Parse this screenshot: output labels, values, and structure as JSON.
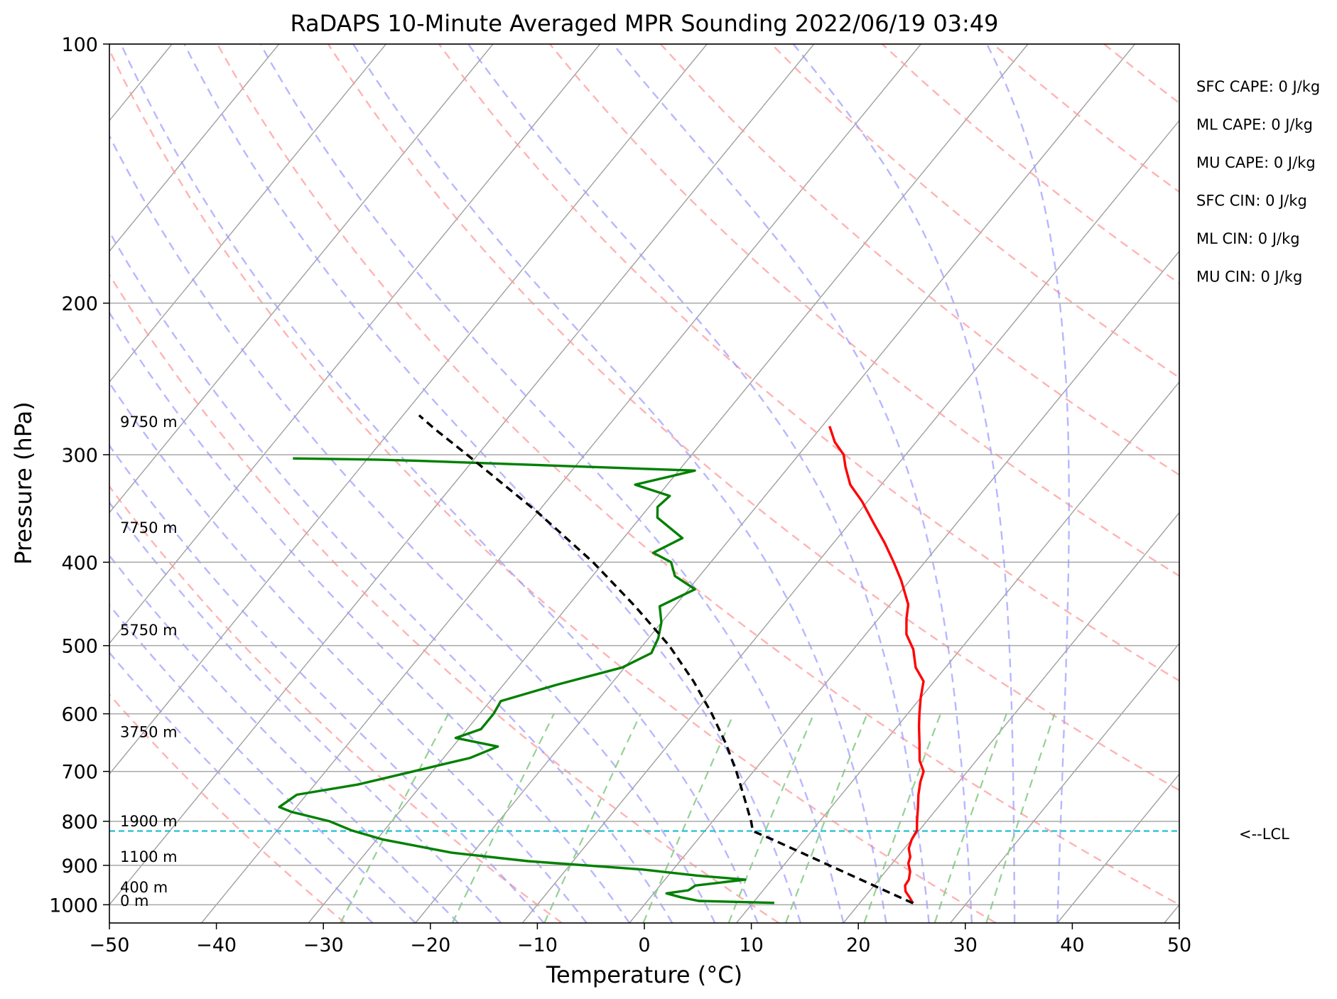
{
  "chart_data": {
    "type": "line",
    "title": "RaDAPS 10-Minute Averaged MPR Sounding 2022/06/19 03:49",
    "xlabel": "Temperature (°C)",
    "ylabel": "Pressure (hPa)",
    "xlim": [
      -50,
      50
    ],
    "ylim": [
      1050,
      100
    ],
    "y_scale": "log",
    "grid": true,
    "skew": true,
    "x_ticks": [
      -50,
      -40,
      -30,
      -20,
      -10,
      0,
      10,
      20,
      30,
      40,
      50
    ],
    "x_tick_labels": [
      "−50",
      "−40",
      "−30",
      "−20",
      "−10",
      "0",
      "10",
      "20",
      "30",
      "40",
      "50"
    ],
    "y_ticks": [
      1000,
      900,
      800,
      700,
      600,
      500,
      400,
      300,
      200,
      100
    ],
    "y_tick_labels": [
      "1000",
      "900",
      "800",
      "700",
      "600",
      "500",
      "400",
      "300",
      "200",
      "100"
    ],
    "series": [
      {
        "role": "temperature",
        "color": "#ff0000",
        "points": [
          [
            996,
            25.0
          ],
          [
            980,
            24.2
          ],
          [
            965,
            23.4
          ],
          [
            950,
            22.9
          ],
          [
            935,
            22.8
          ],
          [
            915,
            22.3
          ],
          [
            895,
            21.5
          ],
          [
            880,
            21.2
          ],
          [
            860,
            20.4
          ],
          [
            840,
            20.0
          ],
          [
            820,
            19.8
          ],
          [
            800,
            19.1
          ],
          [
            770,
            18.1
          ],
          [
            745,
            17.2
          ],
          [
            720,
            16.4
          ],
          [
            700,
            15.9
          ],
          [
            680,
            14.7
          ],
          [
            650,
            13.4
          ],
          [
            620,
            12.0
          ],
          [
            600,
            11.1
          ],
          [
            575,
            10.0
          ],
          [
            550,
            9.0
          ],
          [
            530,
            7.2
          ],
          [
            505,
            5.6
          ],
          [
            485,
            3.8
          ],
          [
            465,
            2.6
          ],
          [
            448,
            1.7
          ],
          [
            420,
            -0.8
          ],
          [
            400,
            -2.9
          ],
          [
            380,
            -5.2
          ],
          [
            360,
            -7.8
          ],
          [
            340,
            -10.5
          ],
          [
            325,
            -12.9
          ],
          [
            310,
            -14.7
          ],
          [
            300,
            -15.8
          ],
          [
            290,
            -17.6
          ],
          [
            278,
            -19.3
          ]
        ]
      },
      {
        "role": "dewpoint",
        "color": "#008000",
        "points": [
          [
            995,
            12.0
          ],
          [
            990,
            4.8
          ],
          [
            980,
            2.8
          ],
          [
            970,
            1.2
          ],
          [
            962,
            3.0
          ],
          [
            950,
            3.3
          ],
          [
            935,
            7.5
          ],
          [
            925,
            2.7
          ],
          [
            910,
            -2.9
          ],
          [
            890,
            -14.2
          ],
          [
            870,
            -22.0
          ],
          [
            840,
            -29.4
          ],
          [
            820,
            -33.0
          ],
          [
            800,
            -35.8
          ],
          [
            780,
            -40.1
          ],
          [
            770,
            -41.6
          ],
          [
            745,
            -40.9
          ],
          [
            725,
            -36.0
          ],
          [
            700,
            -31.8
          ],
          [
            675,
            -27.5
          ],
          [
            655,
            -25.8
          ],
          [
            640,
            -30.4
          ],
          [
            625,
            -28.7
          ],
          [
            600,
            -28.7
          ],
          [
            580,
            -29.0
          ],
          [
            555,
            -25.0
          ],
          [
            530,
            -20.2
          ],
          [
            510,
            -18.6
          ],
          [
            490,
            -19.1
          ],
          [
            470,
            -20.0
          ],
          [
            450,
            -21.4
          ],
          [
            430,
            -19.4
          ],
          [
            415,
            -22.3
          ],
          [
            400,
            -23.7
          ],
          [
            390,
            -26.1
          ],
          [
            375,
            -24.5
          ],
          [
            355,
            -28.4
          ],
          [
            345,
            -29.2
          ],
          [
            335,
            -28.9
          ],
          [
            325,
            -33.0
          ],
          [
            313,
            -28.5
          ],
          [
            305,
            -55.0
          ],
          [
            304,
            -59.0
          ],
          [
            303,
            -67.0
          ]
        ]
      },
      {
        "role": "parcel",
        "color": "#000000",
        "style": "dashed",
        "points": [
          [
            996,
            25.0
          ],
          [
            960,
            21.1
          ],
          [
            920,
            16.6
          ],
          [
            880,
            11.9
          ],
          [
            840,
            7.0
          ],
          [
            821,
            4.5
          ],
          [
            800,
            3.6
          ],
          [
            750,
            1.1
          ],
          [
            700,
            -1.6
          ],
          [
            650,
            -4.7
          ],
          [
            600,
            -8.3
          ],
          [
            550,
            -12.5
          ],
          [
            500,
            -17.5
          ],
          [
            450,
            -23.7
          ],
          [
            400,
            -31.0
          ],
          [
            350,
            -40.0
          ],
          [
            300,
            -51.0
          ],
          [
            280,
            -56.0
          ],
          [
            270,
            -58.5
          ]
        ]
      }
    ],
    "lcl_pressure": 821,
    "lcl_label": "<--LCL",
    "lcl_color": "#17becf",
    "dry_adiabat_color": "#ff9999",
    "moist_adiabat_color": "#9999ff",
    "mixing_ratio_color": "#88cc88",
    "isotherm_color": "#a0a0a0",
    "height_labels": [
      {
        "p": 990,
        "label": "0 m"
      },
      {
        "p": 955,
        "label": "400 m"
      },
      {
        "p": 880,
        "label": "1100 m"
      },
      {
        "p": 800,
        "label": "1900 m"
      },
      {
        "p": 630,
        "label": "3750 m"
      },
      {
        "p": 480,
        "label": "5750 m"
      },
      {
        "p": 365,
        "label": "7750 m"
      },
      {
        "p": 275,
        "label": "9750 m"
      }
    ],
    "indices": [
      "SFC CAPE: 0 J/kg",
      "ML CAPE: 0 J/kg",
      "MU CAPE: 0 J/kg",
      "SFC CIN: 0 J/kg",
      "ML CIN: 0 J/kg",
      "MU CIN: 0 J/kg"
    ]
  }
}
